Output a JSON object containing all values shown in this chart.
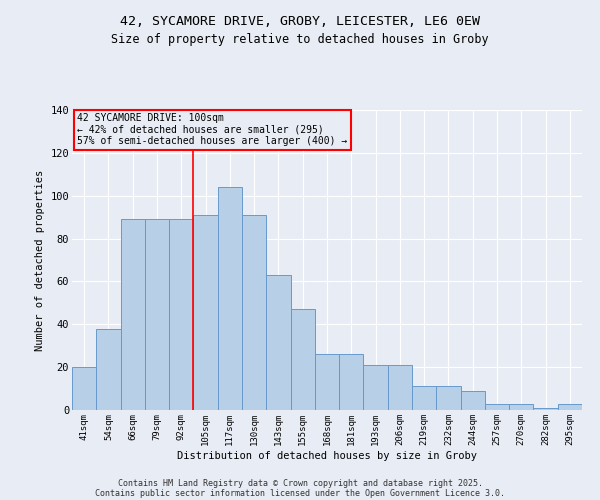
{
  "categories": [
    "41sqm",
    "54sqm",
    "66sqm",
    "79sqm",
    "92sqm",
    "105sqm",
    "117sqm",
    "130sqm",
    "143sqm",
    "155sqm",
    "168sqm",
    "181sqm",
    "193sqm",
    "206sqm",
    "219sqm",
    "232sqm",
    "244sqm",
    "257sqm",
    "270sqm",
    "282sqm",
    "295sqm"
  ],
  "values": [
    20,
    38,
    89,
    89,
    89,
    91,
    104,
    91,
    63,
    47,
    26,
    26,
    21,
    21,
    11,
    11,
    9,
    3,
    3,
    1,
    3
  ],
  "bar_color": "#b8cfe8",
  "bar_edge_color": "#6699cc",
  "background_color": "#e8ecf4",
  "grid_color": "#ffffff",
  "title_line1": "42, SYCAMORE DRIVE, GROBY, LEICESTER, LE6 0EW",
  "title_line2": "Size of property relative to detached houses in Groby",
  "xlabel": "Distribution of detached houses by size in Groby",
  "ylabel": "Number of detached properties",
  "red_line_x": 4.5,
  "annotation_line1": "42 SYCAMORE DRIVE: 100sqm",
  "annotation_line2": "← 42% of detached houses are smaller (295)",
  "annotation_line3": "57% of semi-detached houses are larger (400) →",
  "footer_line1": "Contains HM Land Registry data © Crown copyright and database right 2025.",
  "footer_line2": "Contains public sector information licensed under the Open Government Licence 3.0.",
  "ylim": [
    0,
    140
  ],
  "yticks": [
    0,
    20,
    40,
    60,
    80,
    100,
    120,
    140
  ]
}
